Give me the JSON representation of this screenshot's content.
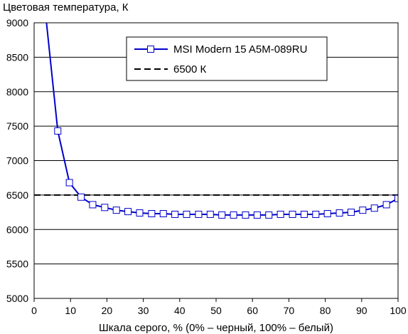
{
  "chart_data": {
    "type": "line",
    "title": "",
    "ylabel": "Цветовая температура, К",
    "xlabel": "Шкала серого, % (0% – черный, 100% – белый)",
    "xlim": [
      0,
      100
    ],
    "ylim": [
      5000,
      9000
    ],
    "xticks": [
      "0",
      "10",
      "20",
      "30",
      "40",
      "50",
      "60",
      "70",
      "80",
      "90",
      "100"
    ],
    "yticks": [
      "5000",
      "5500",
      "6000",
      "6500",
      "7000",
      "7500",
      "8000",
      "8500",
      "9000"
    ],
    "grid": "horizontal",
    "legend_position": "top-center",
    "series": [
      {
        "name": "MSI Modern 15 A5M-089RU",
        "color": "#0000cc",
        "marker": "open-square",
        "x": [
          3.2,
          6.5,
          9.7,
          12.9,
          16.1,
          19.4,
          22.6,
          25.8,
          29.0,
          32.3,
          35.5,
          38.7,
          41.9,
          45.2,
          48.4,
          51.6,
          54.8,
          58.1,
          61.3,
          64.5,
          67.7,
          71.0,
          74.2,
          77.4,
          80.6,
          83.9,
          87.1,
          90.3,
          93.5,
          96.8,
          100
        ],
        "y": [
          9100,
          7430,
          6680,
          6470,
          6360,
          6320,
          6280,
          6260,
          6240,
          6230,
          6230,
          6220,
          6220,
          6220,
          6220,
          6210,
          6210,
          6210,
          6210,
          6210,
          6220,
          6220,
          6220,
          6220,
          6230,
          6240,
          6250,
          6280,
          6310,
          6360,
          6450
        ]
      },
      {
        "name": "6500 К",
        "color": "#000000",
        "style": "dashed",
        "x": [
          0,
          100
        ],
        "y": [
          6500,
          6500
        ]
      }
    ]
  }
}
